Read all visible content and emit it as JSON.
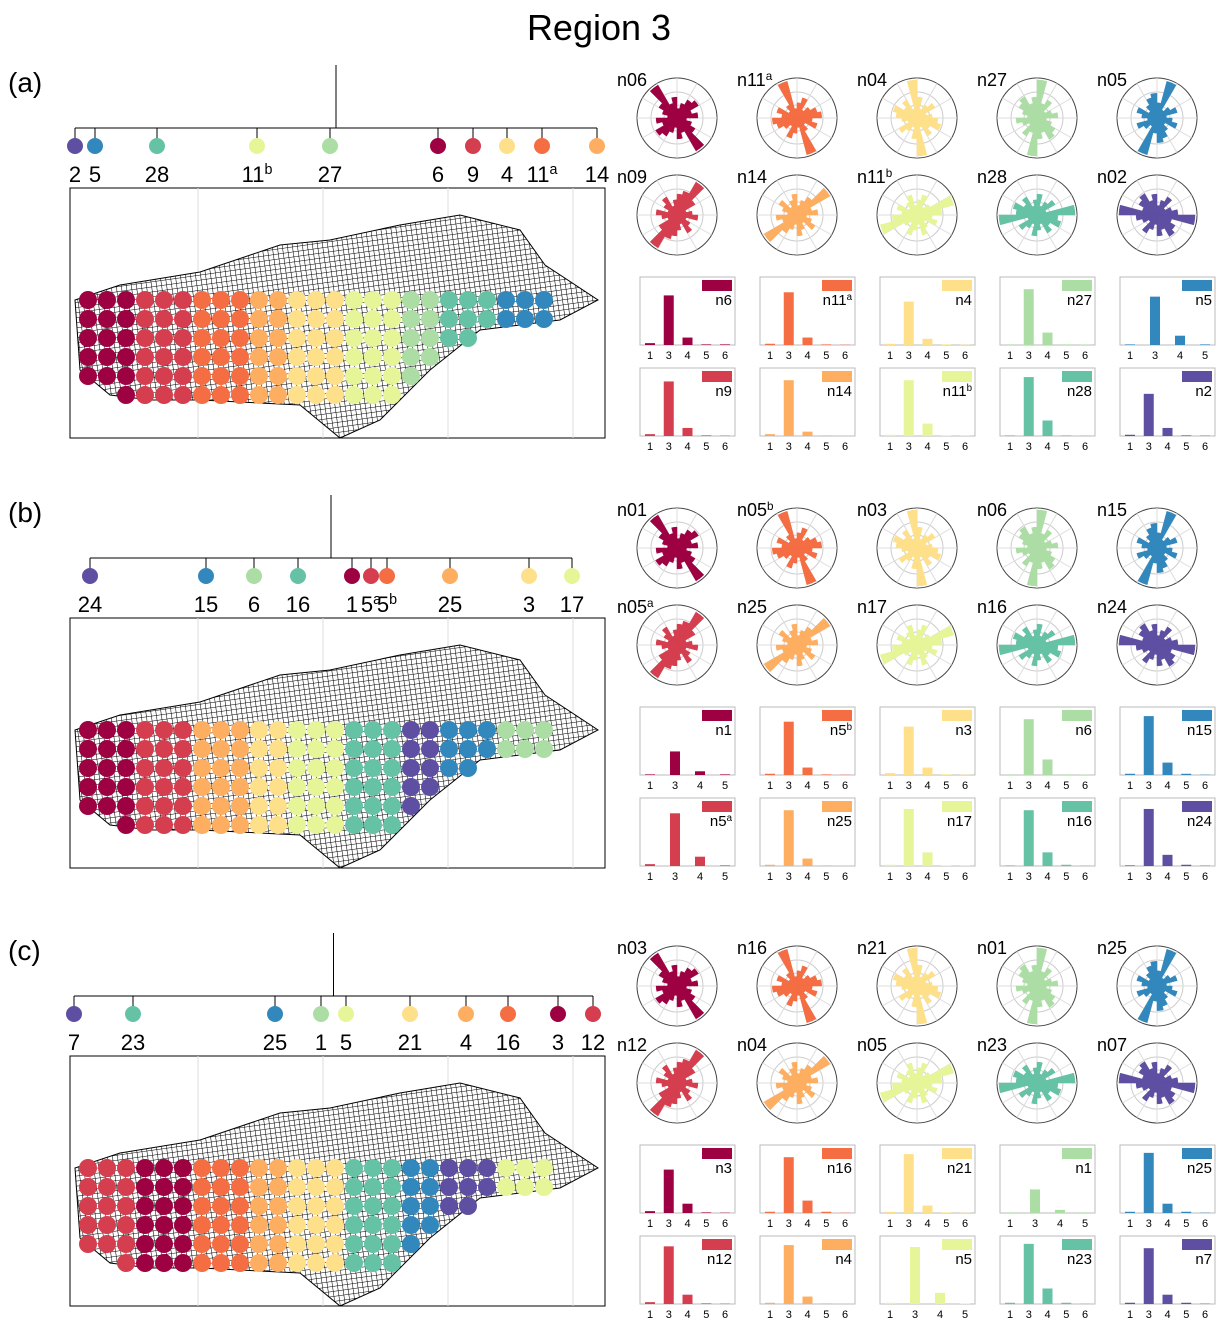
{
  "title": "Region 3",
  "hist_ylim": [
    0,
    1
  ],
  "panels": [
    {
      "label": "(a)",
      "leaves": [
        {
          "label": "2",
          "color": "#5e4fa2"
        },
        {
          "label": "5",
          "color": "#3288bd"
        },
        {
          "label": "28",
          "color": "#66c2a5"
        },
        {
          "label": "11",
          "sup": "b",
          "color": "#e6f598"
        },
        {
          "label": "27",
          "color": "#abdda4"
        },
        {
          "label": "6",
          "color": "#9e0142"
        },
        {
          "label": "9",
          "color": "#d53e4f"
        },
        {
          "label": "4",
          "color": "#fee08b"
        },
        {
          "label": "11",
          "sup": "a",
          "color": "#f46d43"
        },
        {
          "label": "14",
          "color": "#fdae61"
        }
      ],
      "roses": [
        {
          "name": "n06",
          "color": "#9e0142"
        },
        {
          "name": "n11",
          "sup": "a",
          "color": "#f46d43"
        },
        {
          "name": "n04",
          "color": "#fee08b"
        },
        {
          "name": "n27",
          "color": "#abdda4"
        },
        {
          "name": "n05",
          "color": "#3288bd"
        },
        {
          "name": "n09",
          "color": "#d53e4f"
        },
        {
          "name": "n14",
          "color": "#fdae61"
        },
        {
          "name": "n11",
          "sup": "b",
          "color": "#e6f598"
        },
        {
          "name": "n28",
          "color": "#66c2a5"
        },
        {
          "name": "n02",
          "color": "#5e4fa2"
        }
      ],
      "hists": [
        {
          "name": "n6",
          "color": "#9e0142",
          "categories": [
            "1",
            "3",
            "4",
            "5",
            "6"
          ],
          "values": [
            0.03,
            0.8,
            0.12,
            0.01,
            0.01
          ]
        },
        {
          "name": "n11",
          "sup": "a",
          "color": "#f46d43",
          "categories": [
            "1",
            "3",
            "4",
            "5",
            "6"
          ],
          "values": [
            0.02,
            0.85,
            0.12,
            0.01,
            0.005
          ]
        },
        {
          "name": "n4",
          "color": "#fee08b",
          "categories": [
            "1",
            "3",
            "4",
            "5",
            "6"
          ],
          "values": [
            0.02,
            0.7,
            0.1,
            0.01,
            0.005
          ]
        },
        {
          "name": "n27",
          "color": "#abdda4",
          "categories": [
            "1",
            "3",
            "4",
            "5",
            "6"
          ],
          "values": [
            0.01,
            0.9,
            0.2,
            0.01,
            0.005
          ]
        },
        {
          "name": "n5",
          "color": "#3288bd",
          "categories": [
            "1",
            "3",
            "4",
            "5"
          ],
          "values": [
            0.01,
            0.78,
            0.15,
            0.01
          ]
        },
        {
          "name": "n9",
          "color": "#d53e4f",
          "categories": [
            "1",
            "3",
            "4",
            "5",
            "6"
          ],
          "values": [
            0.03,
            0.88,
            0.13,
            0.01,
            0.005
          ]
        },
        {
          "name": "n14",
          "color": "#fdae61",
          "categories": [
            "1",
            "3",
            "4",
            "5",
            "6"
          ],
          "values": [
            0.03,
            0.9,
            0.07,
            0.01,
            0.005
          ]
        },
        {
          "name": "n11",
          "sup": "b",
          "color": "#e6f598",
          "categories": [
            "1",
            "3",
            "4",
            "5",
            "6"
          ],
          "values": [
            0.02,
            0.9,
            0.2,
            0.01,
            0.005
          ]
        },
        {
          "name": "n28",
          "color": "#66c2a5",
          "categories": [
            "1",
            "3",
            "4",
            "5",
            "6"
          ],
          "values": [
            0.01,
            0.95,
            0.25,
            0.01,
            0.005
          ]
        },
        {
          "name": "n2",
          "color": "#5e4fa2",
          "categories": [
            "1",
            "3",
            "4",
            "5",
            "6"
          ],
          "values": [
            0.02,
            0.68,
            0.13,
            0.01,
            0.005
          ]
        }
      ]
    },
    {
      "label": "(b)",
      "leaves": [
        {
          "label": "24",
          "color": "#5e4fa2"
        },
        {
          "label": "15",
          "color": "#3288bd"
        },
        {
          "label": "6",
          "color": "#abdda4"
        },
        {
          "label": "16",
          "color": "#66c2a5"
        },
        {
          "label": "1",
          "color": "#9e0142"
        },
        {
          "label": "5",
          "sup": "a",
          "color": "#d53e4f"
        },
        {
          "label": "5",
          "sup": "b",
          "color": "#f46d43"
        },
        {
          "label": "25",
          "color": "#fdae61"
        },
        {
          "label": "3",
          "color": "#fee08b"
        },
        {
          "label": "17",
          "color": "#e6f598"
        }
      ],
      "roses": [
        {
          "name": "n01",
          "color": "#9e0142"
        },
        {
          "name": "n05",
          "sup": "b",
          "color": "#f46d43"
        },
        {
          "name": "n03",
          "color": "#fee08b"
        },
        {
          "name": "n06",
          "color": "#abdda4"
        },
        {
          "name": "n15",
          "color": "#3288bd"
        },
        {
          "name": "n05",
          "sup": "a",
          "color": "#d53e4f"
        },
        {
          "name": "n25",
          "color": "#fdae61"
        },
        {
          "name": "n17",
          "color": "#e6f598"
        },
        {
          "name": "n16",
          "color": "#66c2a5"
        },
        {
          "name": "n24",
          "color": "#5e4fa2"
        }
      ],
      "hists": [
        {
          "name": "n1",
          "color": "#9e0142",
          "categories": [
            "1",
            "3",
            "4",
            "5"
          ],
          "values": [
            0.01,
            0.38,
            0.06,
            0.01
          ]
        },
        {
          "name": "n5",
          "sup": "b",
          "color": "#f46d43",
          "categories": [
            "1",
            "3",
            "4",
            "5",
            "6"
          ],
          "values": [
            0.02,
            0.86,
            0.12,
            0.01,
            0.005
          ]
        },
        {
          "name": "n3",
          "color": "#fee08b",
          "categories": [
            "1",
            "3",
            "4",
            "5",
            "6"
          ],
          "values": [
            0.03,
            0.78,
            0.12,
            0.01,
            0.005
          ]
        },
        {
          "name": "n6",
          "color": "#abdda4",
          "categories": [
            "1",
            "3",
            "4",
            "5",
            "6"
          ],
          "values": [
            0.01,
            0.9,
            0.25,
            0.01,
            0.005
          ]
        },
        {
          "name": "n15",
          "color": "#3288bd",
          "categories": [
            "1",
            "3",
            "4",
            "5",
            "6"
          ],
          "values": [
            0.02,
            0.95,
            0.2,
            0.02,
            0.005
          ]
        },
        {
          "name": "n5",
          "sup": "a",
          "color": "#d53e4f",
          "categories": [
            "1",
            "3",
            "4",
            "5"
          ],
          "values": [
            0.03,
            0.85,
            0.15,
            0.01
          ]
        },
        {
          "name": "n25",
          "color": "#fdae61",
          "categories": [
            "1",
            "3",
            "4",
            "5",
            "6"
          ],
          "values": [
            0.02,
            0.9,
            0.12,
            0.01,
            0.005
          ]
        },
        {
          "name": "n17",
          "color": "#e6f598",
          "categories": [
            "1",
            "3",
            "4",
            "5",
            "6"
          ],
          "values": [
            0.02,
            0.92,
            0.22,
            0.01,
            0.005
          ]
        },
        {
          "name": "n16",
          "color": "#66c2a5",
          "categories": [
            "1",
            "3",
            "4",
            "5",
            "6"
          ],
          "values": [
            0.01,
            0.9,
            0.22,
            0.02,
            0.005
          ]
        },
        {
          "name": "n24",
          "color": "#5e4fa2",
          "categories": [
            "1",
            "3",
            "4",
            "5",
            "6"
          ],
          "values": [
            0.01,
            0.92,
            0.18,
            0.02,
            0.005
          ]
        }
      ]
    },
    {
      "label": "(c)",
      "leaves": [
        {
          "label": "7",
          "color": "#5e4fa2"
        },
        {
          "label": "23",
          "color": "#66c2a5"
        },
        {
          "label": "25",
          "color": "#3288bd"
        },
        {
          "label": "1",
          "color": "#abdda4"
        },
        {
          "label": "5",
          "color": "#e6f598"
        },
        {
          "label": "21",
          "color": "#fee08b"
        },
        {
          "label": "4",
          "color": "#fdae61"
        },
        {
          "label": "16",
          "color": "#f46d43"
        },
        {
          "label": "3",
          "color": "#9e0142"
        },
        {
          "label": "12",
          "color": "#d53e4f"
        }
      ],
      "roses": [
        {
          "name": "n03",
          "color": "#9e0142"
        },
        {
          "name": "n16",
          "color": "#f46d43"
        },
        {
          "name": "n21",
          "color": "#fee08b"
        },
        {
          "name": "n01",
          "color": "#abdda4"
        },
        {
          "name": "n25",
          "color": "#3288bd"
        },
        {
          "name": "n12",
          "color": "#d53e4f"
        },
        {
          "name": "n04",
          "color": "#fdae61"
        },
        {
          "name": "n05",
          "color": "#e6f598"
        },
        {
          "name": "n23",
          "color": "#66c2a5"
        },
        {
          "name": "n07",
          "color": "#5e4fa2"
        }
      ],
      "hists": [
        {
          "name": "n3",
          "color": "#9e0142",
          "categories": [
            "1",
            "3",
            "4",
            "5",
            "6"
          ],
          "values": [
            0.03,
            0.7,
            0.15,
            0.01,
            0.005
          ]
        },
        {
          "name": "n16",
          "color": "#f46d43",
          "categories": [
            "1",
            "3",
            "4",
            "5",
            "6"
          ],
          "values": [
            0.02,
            0.9,
            0.2,
            0.02,
            0.005
          ]
        },
        {
          "name": "n21",
          "color": "#fee08b",
          "categories": [
            "1",
            "3",
            "4",
            "5",
            "6"
          ],
          "values": [
            0.02,
            0.95,
            0.12,
            0.01,
            0.005
          ]
        },
        {
          "name": "n1",
          "color": "#abdda4",
          "categories": [
            "1",
            "3",
            "4",
            "5"
          ],
          "values": [
            0.01,
            0.38,
            0.05,
            0.01
          ]
        },
        {
          "name": "n25",
          "color": "#3288bd",
          "categories": [
            "1",
            "3",
            "4",
            "5",
            "6"
          ],
          "values": [
            0.02,
            0.97,
            0.15,
            0.02,
            0.005
          ]
        },
        {
          "name": "n12",
          "color": "#d53e4f",
          "categories": [
            "1",
            "3",
            "4",
            "5",
            "6"
          ],
          "values": [
            0.03,
            0.93,
            0.15,
            0.01,
            0.005
          ]
        },
        {
          "name": "n4",
          "color": "#fdae61",
          "categories": [
            "1",
            "3",
            "4",
            "5",
            "6"
          ],
          "values": [
            0.02,
            0.95,
            0.12,
            0.01,
            0.005
          ]
        },
        {
          "name": "n5",
          "color": "#e6f598",
          "categories": [
            "1",
            "3",
            "4",
            "5"
          ],
          "values": [
            0.02,
            0.92,
            0.18,
            0.01
          ]
        },
        {
          "name": "n23",
          "color": "#66c2a5",
          "categories": [
            "1",
            "3",
            "4",
            "5",
            "6"
          ],
          "values": [
            0.02,
            0.97,
            0.25,
            0.02,
            0.005
          ]
        },
        {
          "name": "n7",
          "color": "#5e4fa2",
          "categories": [
            "1",
            "3",
            "4",
            "5",
            "6"
          ],
          "values": [
            0.02,
            0.9,
            0.15,
            0.02,
            0.005
          ]
        }
      ]
    }
  ]
}
